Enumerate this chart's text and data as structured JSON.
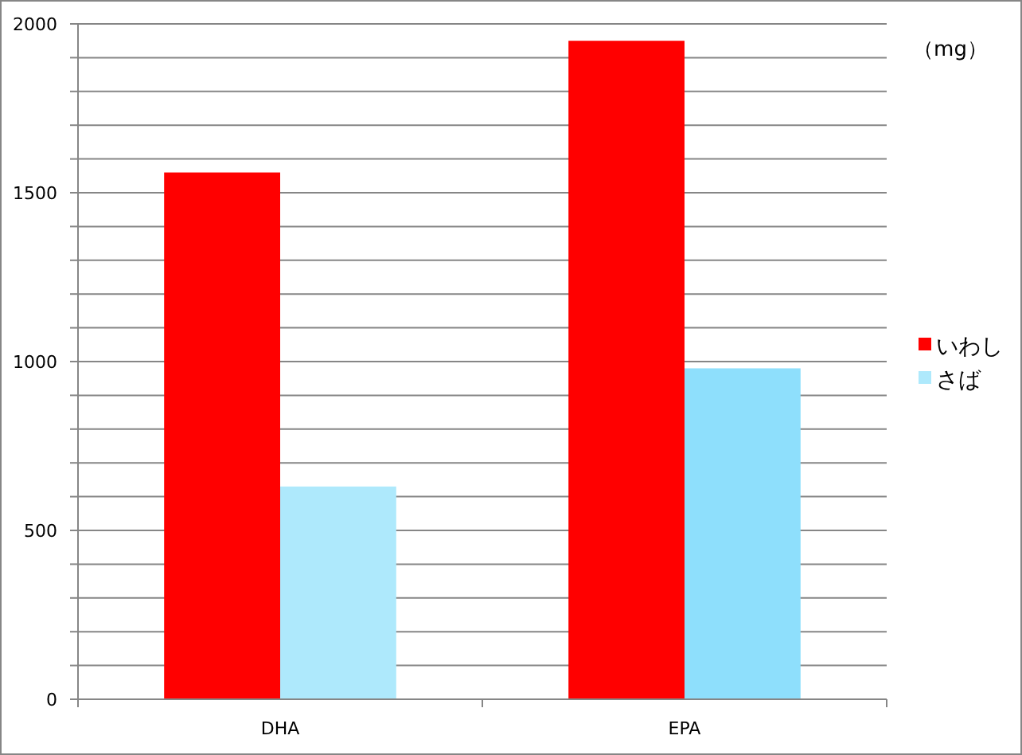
{
  "chart_data": {
    "type": "bar",
    "ylabel": "（mg）",
    "categories": [
      "DHA",
      "EPA"
    ],
    "series": [
      {
        "name": "いわし",
        "color": "#ff0000",
        "values": [
          1560,
          1950
        ]
      },
      {
        "name": "さば",
        "color": "#aee9fc",
        "colors": [
          "#aee9fc",
          "#8edffc"
        ],
        "values": [
          630,
          980
        ]
      }
    ],
    "ylim": [
      0,
      2000
    ],
    "yticks": [
      0,
      {
        "value": 100,
        "label": null
      },
      {
        "value": 200,
        "label": null
      },
      {
        "value": 300,
        "label": null
      },
      {
        "value": 400,
        "label": null
      },
      500,
      {
        "value": 600,
        "label": null
      },
      {
        "value": 700,
        "label": null
      },
      {
        "value": 800,
        "label": null
      },
      {
        "value": 900,
        "label": null
      },
      1000,
      {
        "value": 1100,
        "label": null
      },
      {
        "value": 1200,
        "label": null
      },
      {
        "value": 1300,
        "label": null
      },
      {
        "value": 1400,
        "label": null
      },
      1500,
      {
        "value": 1600,
        "label": null
      },
      {
        "value": 1700,
        "label": null
      },
      {
        "value": 1800,
        "label": null
      },
      {
        "value": 1900,
        "label": null
      },
      2000
    ],
    "grid": "y",
    "legend": "right"
  }
}
